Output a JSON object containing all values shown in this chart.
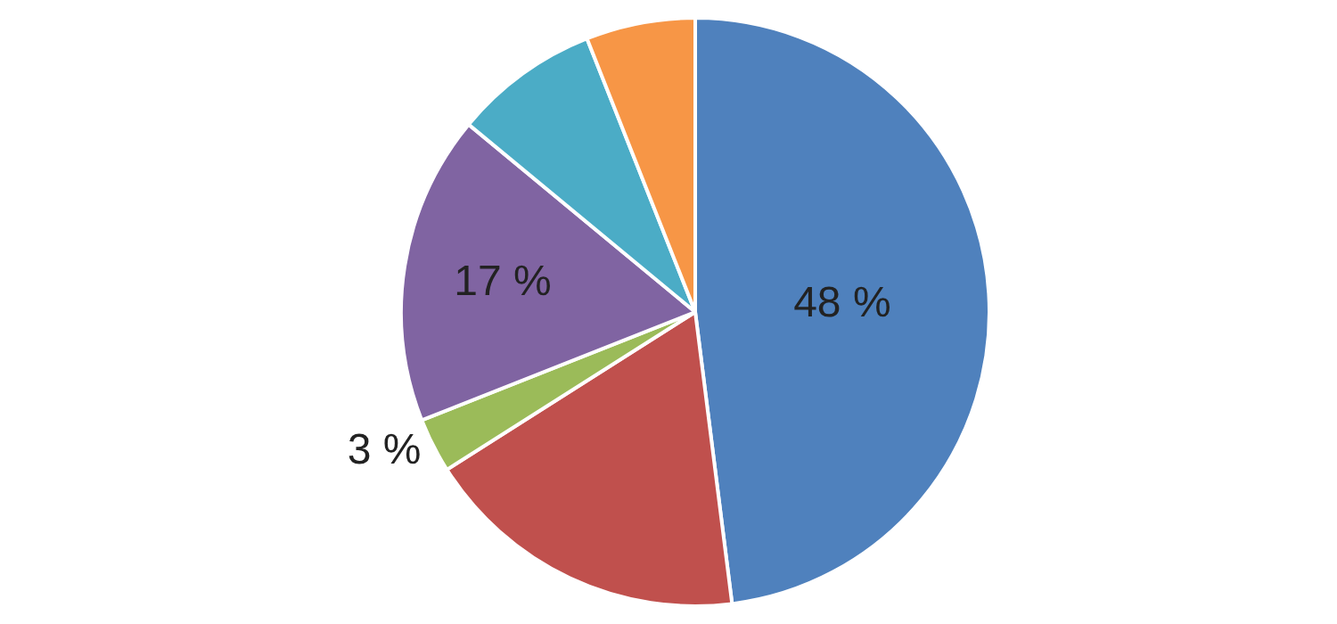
{
  "chart_data": {
    "type": "pie",
    "categories": [
      null,
      null,
      null,
      null,
      null,
      null
    ],
    "values": [
      48,
      18,
      3,
      17,
      8,
      6
    ],
    "value_labels": [
      "48 %",
      null,
      "3 %",
      "17 %",
      null,
      null
    ],
    "colors": [
      "#4f81bd",
      "#c0504d",
      "#9bbb59",
      "#8064a2",
      "#4bacc6",
      "#f79646"
    ],
    "legend": false
  }
}
